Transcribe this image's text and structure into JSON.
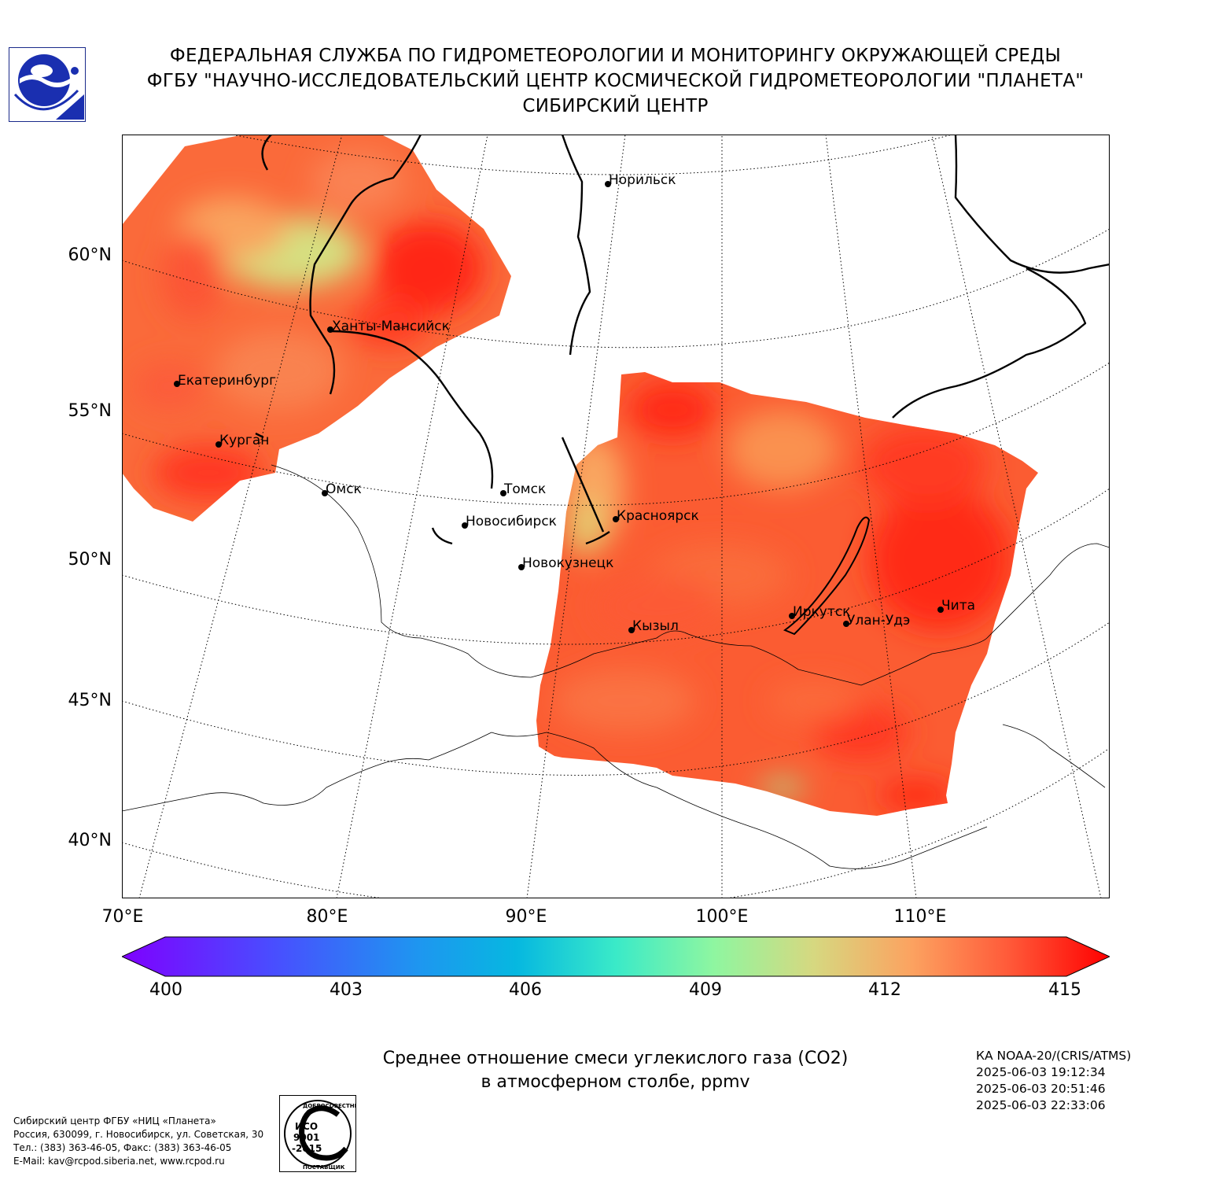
{
  "header": {
    "line1": "ФЕДЕРАЛЬНАЯ СЛУЖБА ПО ГИДРОМЕТЕОРОЛОГИИ И МОНИТОРИНГУ ОКРУЖАЮЩЕЙ СРЕДЫ",
    "line2": "ФГБУ \"НАУЧНО-ИССЛЕДОВАТЕЛЬСКИЙ ЦЕНТР КОСМИЧЕСКОЙ ГИДРОМЕТЕОРОЛОГИИ \"ПЛАНЕТА\"",
    "line3": "СИБИРСКИЙ ЦЕНТР"
  },
  "map": {
    "lat_labels": [
      "60°N",
      "55°N",
      "50°N",
      "45°N",
      "40°N"
    ],
    "lon_labels": [
      "70°E",
      "80°E",
      "90°E",
      "100°E",
      "110°E"
    ],
    "cities": [
      {
        "name": "Норильск"
      },
      {
        "name": "Ханты-Мансийск"
      },
      {
        "name": "Екатеринбург"
      },
      {
        "name": "Курган"
      },
      {
        "name": "Омск"
      },
      {
        "name": "Томск"
      },
      {
        "name": "Новосибирск"
      },
      {
        "name": "Красноярск"
      },
      {
        "name": "Новокузнецк"
      },
      {
        "name": "Иркутск"
      },
      {
        "name": "Улан-Удэ"
      },
      {
        "name": "Чита"
      },
      {
        "name": "Кызыл"
      }
    ],
    "colors": {
      "high": "#ff2a1a",
      "mid_high": "#fb5a30",
      "mid": "#fa9350",
      "low": "#d3e07a"
    }
  },
  "colorbar": {
    "ticks": [
      "400",
      "403",
      "406",
      "409",
      "412",
      "415"
    ],
    "min": 400,
    "max": 415
  },
  "caption": {
    "line1": "Среднее отношение смеси углекислого газа (CO2)",
    "line2": "в атмосферном столбе, ppmv"
  },
  "satellite": {
    "name": "КА NOAA-20/(CRIS/ATMS)",
    "times": [
      "2025-06-03 19:12:34",
      "2025-06-03 20:51:46",
      "2025-06-03 22:33:06"
    ]
  },
  "footer": {
    "org": "Сибирский центр ФГБУ «НИЦ «Планета»",
    "address": "Россия, 630099, г. Новосибирск, ул. Советская, 30",
    "phone": "Тел.: (383) 363-46-05, Факс: (383) 363-46-05",
    "email": "E-Mail: kav@rcpod.siberia.net, www.rcpod.ru"
  },
  "iso": {
    "top": "ДОБРОСОВЕСТНЫЙ",
    "line1": "ИСО",
    "line2": "9001",
    "line3": "-2015",
    "bottom": "ПОСТАВЩИК"
  }
}
